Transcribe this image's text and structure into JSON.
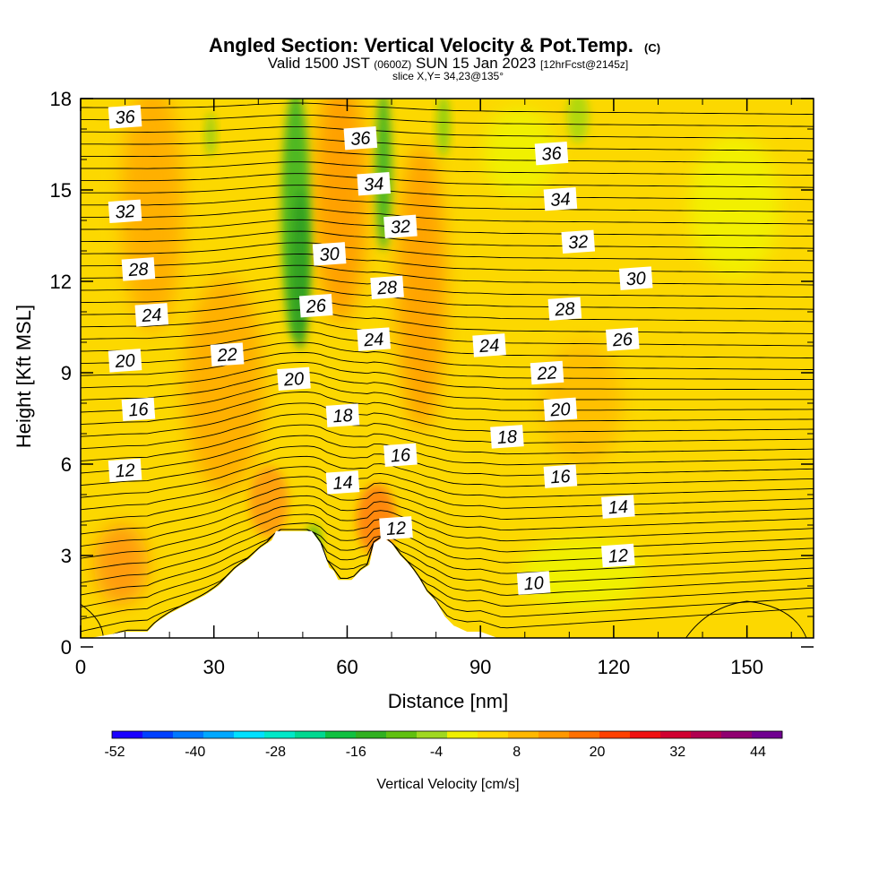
{
  "chart_data": {
    "type": "heatmap",
    "title": "Angled Section: Vertical Velocity & Pot.Temp.",
    "title_mark": "(C)",
    "subtitle_main_a": "Valid 1500 JST",
    "subtitle_small_a": "(0600Z)",
    "subtitle_main_b": "SUN 15 Jan 2023",
    "subtitle_small_b": "[12hrFcst@2145z]",
    "slice_text": "slice X,Y= 34,23@135°",
    "xlabel": "Distance [nm]",
    "ylabel": "Height [Kft MSL]",
    "xlim": [
      0,
      165
    ],
    "ylim": [
      0,
      18
    ],
    "x_ticks": [
      0,
      30,
      60,
      90,
      120,
      150
    ],
    "y_ticks": [
      0,
      3,
      6,
      9,
      12,
      15,
      18
    ],
    "colorbar": {
      "label": "Vertical Velocity [cm/s]",
      "tick_labels": [
        "-52",
        "-40",
        "-28",
        "-16",
        "-4",
        "8",
        "20",
        "32",
        "44"
      ],
      "colors": [
        "#1a00ff",
        "#0040ff",
        "#0078ff",
        "#00a8ff",
        "#00e0ff",
        "#00e8c8",
        "#00d890",
        "#10c040",
        "#30b020",
        "#60c010",
        "#a0d820",
        "#f0f000",
        "#ffd800",
        "#ffb800",
        "#ff9800",
        "#ff7000",
        "#ff4000",
        "#f01010",
        "#d00030",
        "#b00050",
        "#900070",
        "#700090"
      ]
    },
    "background_color": "#fcd800",
    "terrain": [
      [
        0,
        0
      ],
      [
        10,
        0.5
      ],
      [
        15,
        0.5
      ],
      [
        17,
        0.8
      ],
      [
        20,
        1.1
      ],
      [
        24,
        1.4
      ],
      [
        28,
        1.7
      ],
      [
        31,
        2
      ],
      [
        33,
        2.3
      ],
      [
        35,
        2.6
      ],
      [
        38,
        2.9
      ],
      [
        40,
        3.2
      ],
      [
        43,
        3.5
      ],
      [
        44,
        3.8
      ],
      [
        48,
        3.8
      ],
      [
        52,
        3.8
      ],
      [
        54,
        3.4
      ],
      [
        55,
        3
      ],
      [
        56,
        2.6
      ],
      [
        57,
        2.5
      ],
      [
        58,
        2.2
      ],
      [
        61,
        2.2
      ],
      [
        63,
        2.5
      ],
      [
        65,
        2.7
      ],
      [
        66,
        3.4
      ],
      [
        68,
        3.6
      ],
      [
        70,
        3.4
      ],
      [
        72,
        3
      ],
      [
        74,
        2.7
      ],
      [
        76,
        2.3
      ],
      [
        78,
        1.8
      ],
      [
        80,
        1.5
      ],
      [
        82,
        1
      ],
      [
        84,
        0.7
      ],
      [
        87,
        0.5
      ],
      [
        90,
        0.5
      ],
      [
        95,
        0
      ],
      [
        0,
        0
      ]
    ],
    "contour_labels": [
      {
        "text": "36",
        "x": 10,
        "y": 17.4
      },
      {
        "text": "36",
        "x": 63,
        "y": 16.7
      },
      {
        "text": "36",
        "x": 106,
        "y": 16.2
      },
      {
        "text": "34",
        "x": 66,
        "y": 15.2
      },
      {
        "text": "34",
        "x": 108,
        "y": 14.7
      },
      {
        "text": "32",
        "x": 10,
        "y": 14.3
      },
      {
        "text": "32",
        "x": 72,
        "y": 13.8
      },
      {
        "text": "32",
        "x": 112,
        "y": 13.3
      },
      {
        "text": "30",
        "x": 56,
        "y": 12.9
      },
      {
        "text": "30",
        "x": 125,
        "y": 12.1
      },
      {
        "text": "28",
        "x": 13,
        "y": 12.4
      },
      {
        "text": "28",
        "x": 69,
        "y": 11.8
      },
      {
        "text": "28",
        "x": 109,
        "y": 11.1
      },
      {
        "text": "26",
        "x": 53,
        "y": 11.2
      },
      {
        "text": "26",
        "x": 122,
        "y": 10.1
      },
      {
        "text": "24",
        "x": 16,
        "y": 10.9
      },
      {
        "text": "24",
        "x": 66,
        "y": 10.1
      },
      {
        "text": "24",
        "x": 92,
        "y": 9.9
      },
      {
        "text": "22",
        "x": 33,
        "y": 9.6
      },
      {
        "text": "22",
        "x": 105,
        "y": 9.0
      },
      {
        "text": "20",
        "x": 10,
        "y": 9.4
      },
      {
        "text": "20",
        "x": 48,
        "y": 8.8
      },
      {
        "text": "20",
        "x": 108,
        "y": 7.8
      },
      {
        "text": "18",
        "x": 59,
        "y": 7.6
      },
      {
        "text": "18",
        "x": 96,
        "y": 6.9
      },
      {
        "text": "16",
        "x": 13,
        "y": 7.8
      },
      {
        "text": "16",
        "x": 72,
        "y": 6.3
      },
      {
        "text": "16",
        "x": 108,
        "y": 5.6
      },
      {
        "text": "14",
        "x": 59,
        "y": 5.4
      },
      {
        "text": "14",
        "x": 121,
        "y": 4.6
      },
      {
        "text": "12",
        "x": 10,
        "y": 5.8
      },
      {
        "text": "12",
        "x": 71,
        "y": 3.9
      },
      {
        "text": "12",
        "x": 121,
        "y": 3.0
      },
      {
        "text": "10",
        "x": 102,
        "y": 2.1
      }
    ]
  }
}
